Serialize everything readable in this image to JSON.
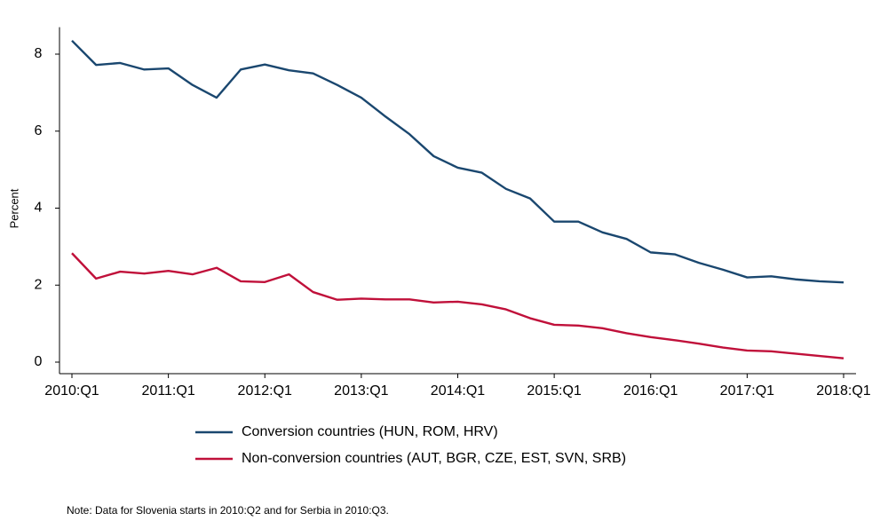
{
  "chart_data": {
    "type": "line",
    "ylabel": "Percent",
    "categories": [
      "2010:Q1",
      null,
      null,
      null,
      "2011:Q1",
      null,
      null,
      null,
      "2012:Q1",
      null,
      null,
      null,
      "2013:Q1",
      null,
      null,
      null,
      "2014:Q1",
      null,
      null,
      null,
      "2015:Q1",
      null,
      null,
      null,
      "2016:Q1",
      null,
      null,
      null,
      "2017:Q1",
      null,
      null,
      null,
      "2018:Q1"
    ],
    "series": [
      {
        "name": "Conversion countries (HUN, ROM, HRV)",
        "color": "#1a476f",
        "values": [
          8.35,
          7.72,
          7.77,
          7.6,
          7.63,
          7.2,
          6.87,
          7.6,
          7.73,
          7.58,
          7.5,
          7.2,
          6.87,
          6.38,
          5.92,
          5.35,
          5.05,
          4.92,
          4.5,
          4.25,
          3.65,
          3.65,
          3.37,
          3.2,
          2.85,
          2.8,
          2.58,
          2.4,
          2.2,
          2.23,
          2.15,
          2.1,
          2.07
        ]
      },
      {
        "name": "Non-conversion countries (AUT, BGR, CZE, EST, SVN, SRB)",
        "color": "#c0103a",
        "values": [
          2.83,
          2.17,
          2.35,
          2.3,
          2.37,
          2.28,
          2.45,
          2.1,
          2.08,
          2.28,
          1.82,
          1.62,
          1.65,
          1.63,
          1.63,
          1.55,
          1.57,
          1.5,
          1.37,
          1.14,
          0.97,
          0.95,
          0.88,
          0.75,
          0.65,
          0.57,
          0.48,
          0.38,
          0.3,
          0.28,
          0.22,
          0.16,
          0.1
        ]
      }
    ],
    "ylim": [
      -0.3,
      8.7
    ],
    "yticks": [
      0,
      2,
      4,
      6,
      8
    ],
    "note": "Note: Data for Slovenia starts in 2010:Q2 and for Serbia in 2010:Q3."
  }
}
